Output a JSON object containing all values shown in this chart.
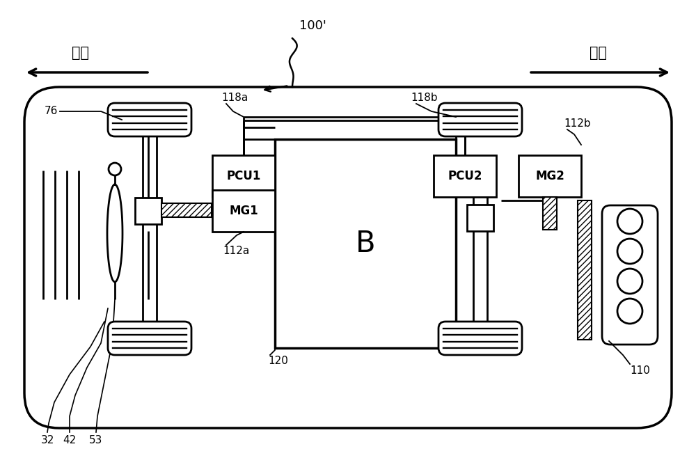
{
  "bg_color": "#ffffff",
  "lc": "#000000",
  "label_100": "100'",
  "label_front": "前方",
  "label_rear": "后方",
  "label_PCU1": "PCU1",
  "label_PCU2": "PCU2",
  "label_MG1": "MG1",
  "label_MG2": "MG2",
  "label_B": "B",
  "label_118a": "118a",
  "label_118b": "118b",
  "label_112a": "112a",
  "label_112b": "112b",
  "label_120": "120",
  "label_76": "76",
  "label_32": "32",
  "label_42": "42",
  "label_53": "53",
  "label_110": "110"
}
